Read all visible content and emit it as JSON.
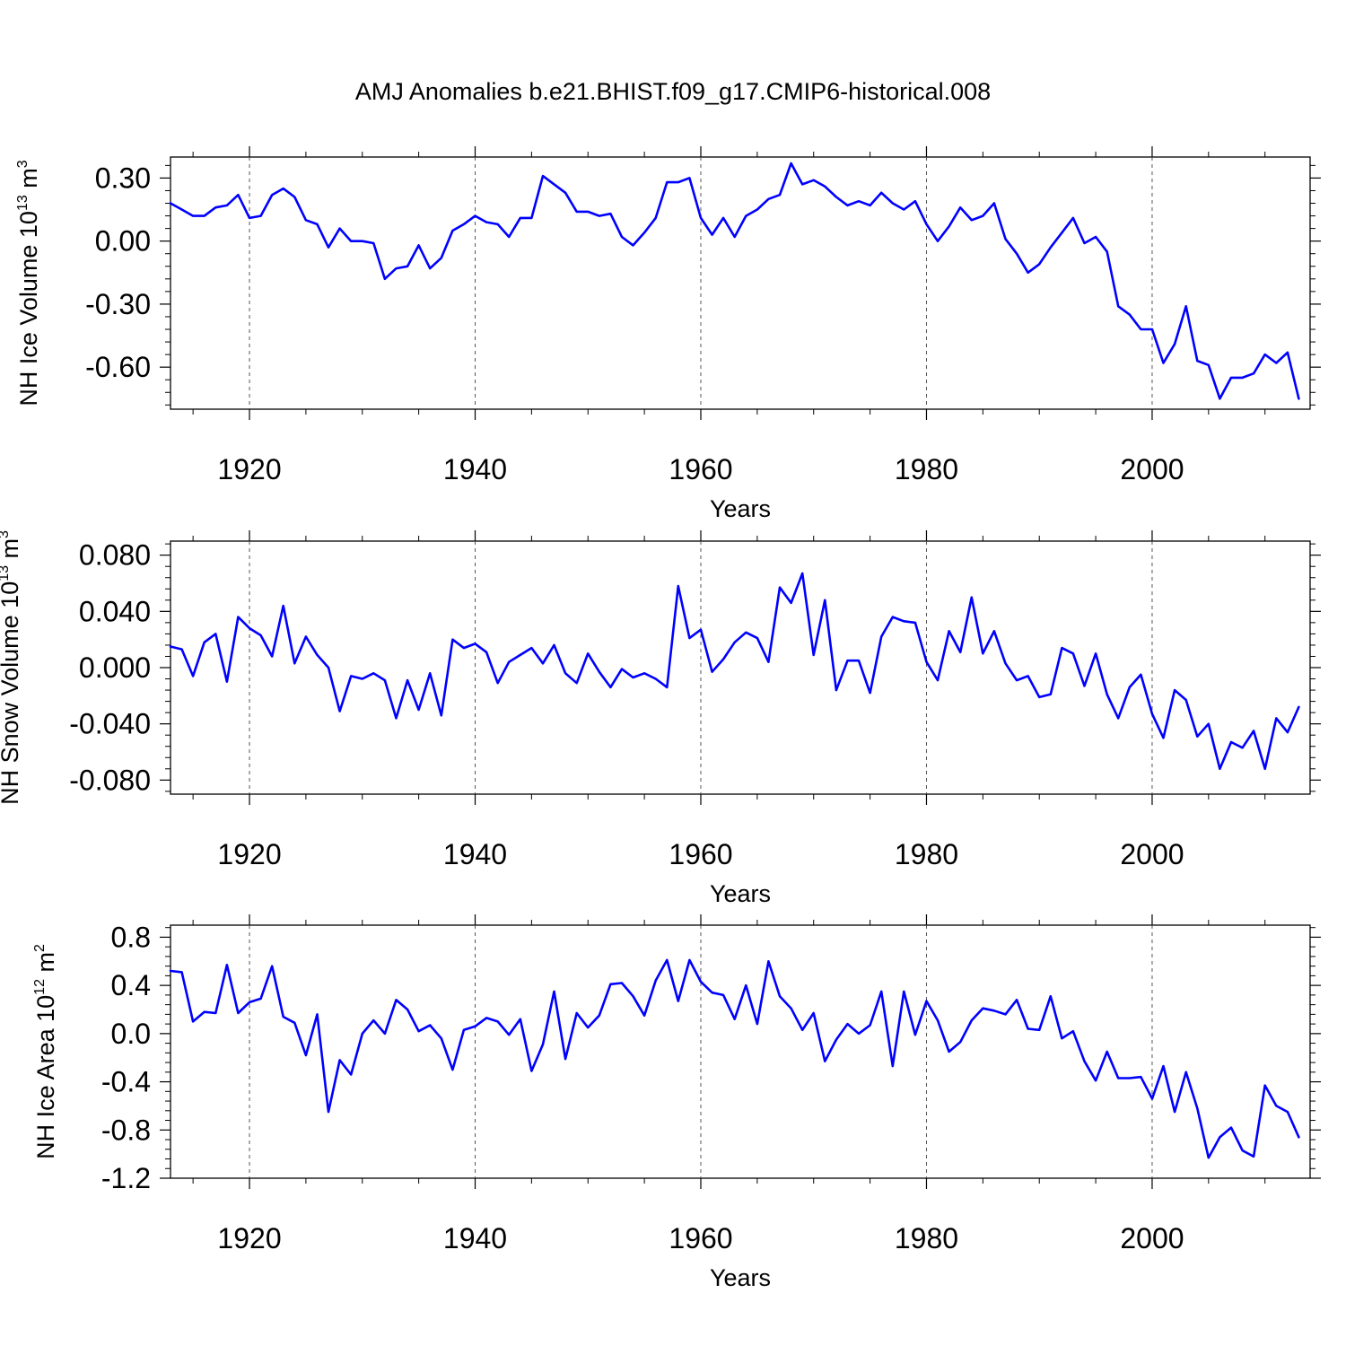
{
  "title": "AMJ Anomalies b.e21.BHIST.f09_g17.CMIP6-historical.008",
  "line_color": "#0000ff",
  "chart_data": [
    {
      "type": "line",
      "ylabel": "NH Ice Volume",
      "ylabel_unit": {
        "pre": "10",
        "exp": "13",
        "mid": " m",
        "exp2": "3"
      },
      "xlabel": "Years",
      "xlim": [
        1913,
        2014
      ],
      "ylim": [
        -0.8,
        0.4
      ],
      "xticks": [
        "1920",
        "1940",
        "1960",
        "1980",
        "2000"
      ],
      "yticks": [
        "0.30",
        "0.00",
        "-0.30",
        "-0.60"
      ],
      "grid": "vertical-dashed",
      "series": [
        {
          "x_start": 1913,
          "values": [
            0.18,
            0.15,
            0.12,
            0.12,
            0.16,
            0.17,
            0.22,
            0.11,
            0.12,
            0.22,
            0.25,
            0.21,
            0.1,
            0.08,
            -0.03,
            0.06,
            0.0,
            0.0,
            -0.01,
            -0.18,
            -0.13,
            -0.12,
            -0.02,
            -0.13,
            -0.08,
            0.05,
            0.08,
            0.12,
            0.09,
            0.08,
            0.02,
            0.11,
            0.11,
            0.31,
            0.27,
            0.23,
            0.14,
            0.14,
            0.12,
            0.13,
            0.02,
            -0.02,
            0.04,
            0.11,
            0.28,
            0.28,
            0.3,
            0.11,
            0.03,
            0.11,
            0.02,
            0.12,
            0.15,
            0.2,
            0.22,
            0.37,
            0.27,
            0.29,
            0.26,
            0.21,
            0.17,
            0.19,
            0.17,
            0.23,
            0.18,
            0.15,
            0.19,
            0.08,
            0.0,
            0.07,
            0.16,
            0.1,
            0.12,
            0.18,
            0.01,
            -0.06,
            -0.15,
            -0.11,
            -0.03,
            0.04,
            0.11,
            -0.01,
            0.02,
            -0.05,
            -0.31,
            -0.35,
            -0.42,
            -0.42,
            -0.58,
            -0.49,
            -0.31,
            -0.57,
            -0.59,
            -0.75,
            -0.65,
            -0.65,
            -0.63,
            -0.54,
            -0.58,
            -0.53,
            -0.75
          ]
        }
      ]
    },
    {
      "type": "line",
      "ylabel": "NH Snow Volume",
      "ylabel_unit": {
        "pre": "10",
        "exp": "13",
        "mid": " m",
        "exp2": "3"
      },
      "xlabel": "Years",
      "xlim": [
        1913,
        2014
      ],
      "ylim": [
        -0.09,
        0.09
      ],
      "xticks": [
        "1920",
        "1940",
        "1960",
        "1980",
        "2000"
      ],
      "yticks": [
        "0.080",
        "0.040",
        "0.000",
        "-0.040",
        "-0.080"
      ],
      "grid": "vertical-dashed",
      "series": [
        {
          "x_start": 1913,
          "values": [
            0.015,
            0.013,
            -0.006,
            0.018,
            0.024,
            -0.01,
            0.036,
            0.028,
            0.023,
            0.008,
            0.044,
            0.003,
            0.022,
            0.009,
            0.0,
            -0.031,
            -0.006,
            -0.008,
            -0.004,
            -0.009,
            -0.036,
            -0.009,
            -0.03,
            -0.004,
            -0.034,
            0.02,
            0.014,
            0.017,
            0.011,
            -0.011,
            0.004,
            0.009,
            0.014,
            0.003,
            0.016,
            -0.004,
            -0.011,
            0.01,
            -0.003,
            -0.014,
            -0.001,
            -0.007,
            -0.004,
            -0.008,
            -0.014,
            0.058,
            0.021,
            0.027,
            -0.003,
            0.006,
            0.018,
            0.025,
            0.021,
            0.004,
            0.057,
            0.046,
            0.067,
            0.009,
            0.048,
            -0.016,
            0.005,
            0.005,
            -0.018,
            0.022,
            0.036,
            0.033,
            0.032,
            0.004,
            -0.009,
            0.026,
            0.011,
            0.05,
            0.01,
            0.026,
            0.003,
            -0.009,
            -0.006,
            -0.021,
            -0.019,
            0.014,
            0.01,
            -0.013,
            0.01,
            -0.019,
            -0.036,
            -0.014,
            -0.005,
            -0.033,
            -0.05,
            -0.016,
            -0.023,
            -0.049,
            -0.04,
            -0.072,
            -0.053,
            -0.057,
            -0.045,
            -0.072,
            -0.036,
            -0.046,
            -0.028
          ]
        }
      ]
    },
    {
      "type": "line",
      "ylabel": "NH Ice Area",
      "ylabel_unit": {
        "pre": "10",
        "exp": "12",
        "mid": " m",
        "exp2": "2"
      },
      "xlabel": "Years",
      "xlim": [
        1913,
        2014
      ],
      "ylim": [
        -1.2,
        0.9
      ],
      "xticks": [
        "1920",
        "1940",
        "1960",
        "1980",
        "2000"
      ],
      "yticks": [
        "0.8",
        "0.4",
        "0.0",
        "-0.4",
        "-0.8",
        "-1.2"
      ],
      "grid": "vertical-dashed",
      "series": [
        {
          "x_start": 1913,
          "values": [
            0.52,
            0.51,
            0.1,
            0.18,
            0.17,
            0.57,
            0.17,
            0.26,
            0.29,
            0.56,
            0.14,
            0.09,
            -0.18,
            0.16,
            -0.65,
            -0.22,
            -0.34,
            0.0,
            0.11,
            0.0,
            0.28,
            0.2,
            0.02,
            0.07,
            -0.04,
            -0.3,
            0.03,
            0.06,
            0.13,
            0.1,
            -0.01,
            0.12,
            -0.31,
            -0.09,
            0.35,
            -0.21,
            0.17,
            0.05,
            0.15,
            0.41,
            0.42,
            0.31,
            0.15,
            0.44,
            0.61,
            0.27,
            0.61,
            0.43,
            0.34,
            0.32,
            0.12,
            0.4,
            0.08,
            0.6,
            0.31,
            0.21,
            0.03,
            0.17,
            -0.23,
            -0.05,
            0.08,
            0.0,
            0.07,
            0.35,
            -0.27,
            0.35,
            -0.01,
            0.27,
            0.11,
            -0.15,
            -0.07,
            0.11,
            0.21,
            0.19,
            0.16,
            0.28,
            0.04,
            0.03,
            0.31,
            -0.04,
            0.02,
            -0.23,
            -0.39,
            -0.15,
            -0.37,
            -0.37,
            -0.36,
            -0.54,
            -0.27,
            -0.65,
            -0.32,
            -0.62,
            -1.03,
            -0.86,
            -0.78,
            -0.97,
            -1.02,
            -0.43,
            -0.6,
            -0.65,
            -0.86
          ]
        }
      ]
    }
  ]
}
